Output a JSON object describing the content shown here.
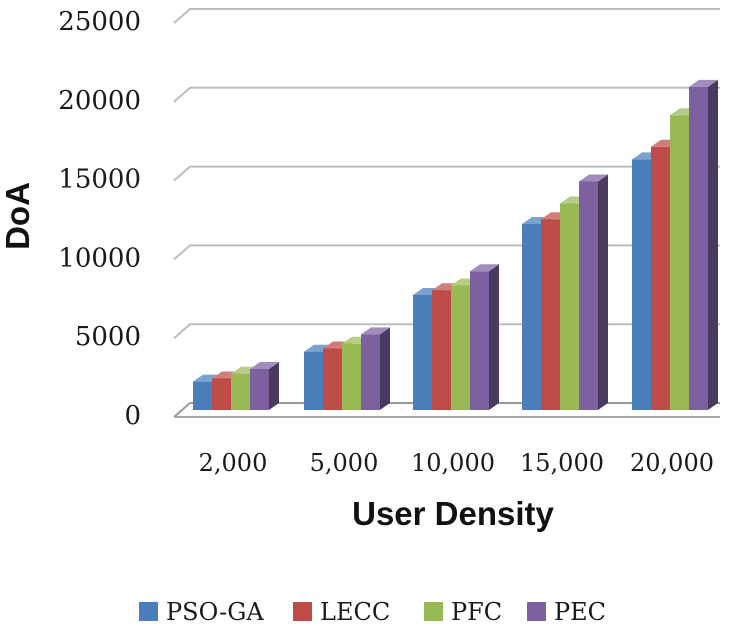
{
  "chart_data": {
    "type": "bar",
    "style": "3d-clustered-column",
    "title": "",
    "xlabel": "User Density",
    "ylabel": "DoA",
    "categories": [
      "2,000",
      "5,000",
      "10,000",
      "15,000",
      "20,000"
    ],
    "series": [
      {
        "name": "PSO-GA",
        "color": "#4a7ebb",
        "values": [
          1800,
          3700,
          7300,
          11800,
          15900
        ]
      },
      {
        "name": "LECC",
        "color": "#be4b48",
        "values": [
          2000,
          3900,
          7600,
          12100,
          16700
        ]
      },
      {
        "name": "PFC",
        "color": "#98b954",
        "values": [
          2300,
          4200,
          7900,
          13100,
          18700
        ]
      },
      {
        "name": "PEC",
        "color": "#7d60a0",
        "values": [
          2600,
          4800,
          8800,
          14500,
          20500
        ]
      }
    ],
    "yticks": [
      "0",
      "5000",
      "10000",
      "15000",
      "20000",
      "25000"
    ],
    "ylim": [
      0,
      25000
    ],
    "grid": true,
    "legend": "bottom"
  }
}
